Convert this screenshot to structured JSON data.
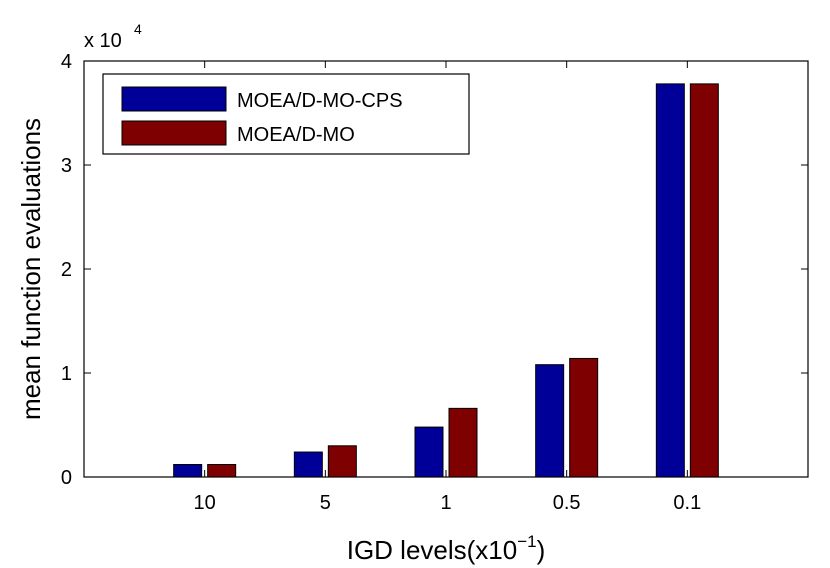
{
  "chart_data": {
    "type": "bar",
    "title": "",
    "xlabel": "IGD levels(x10",
    "xlabel_superscript": "−1",
    "xlabel_suffix": ")",
    "ylabel": "mean function evaluations",
    "y_multiplier": "x 10",
    "y_multiplier_exponent": "4",
    "categories": [
      "10",
      "5",
      "1",
      "0.5",
      "0.1"
    ],
    "ylim": [
      0,
      4
    ],
    "yticks": [
      "0",
      "1",
      "2",
      "3",
      "4"
    ],
    "grid": false,
    "legend_position": "top-left",
    "series": [
      {
        "name": "MOEA/D-MO-CPS",
        "color": "#000099",
        "values": [
          0.12,
          0.24,
          0.48,
          1.08,
          3.78
        ]
      },
      {
        "name": "MOEA/D-MO",
        "color": "#7f0000",
        "values": [
          0.12,
          0.3,
          0.66,
          1.14,
          3.78
        ]
      }
    ]
  }
}
